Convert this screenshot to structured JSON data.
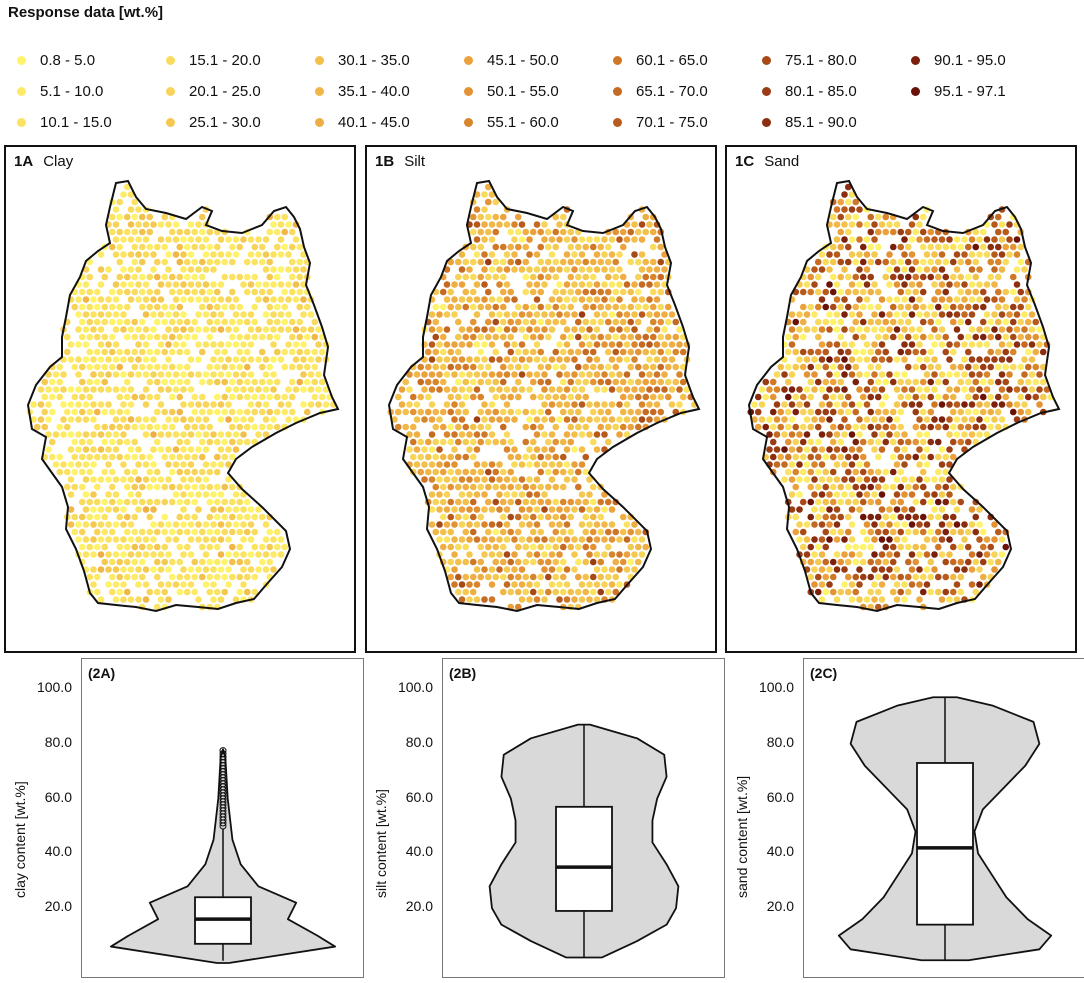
{
  "legend": {
    "title": "Response data [wt.%]",
    "items": [
      {
        "label": "0.8 - 5.0",
        "color": "#fff36b"
      },
      {
        "label": "5.1 - 10.0",
        "color": "#fdeb68"
      },
      {
        "label": "10.1 - 15.0",
        "color": "#fbe261"
      },
      {
        "label": "15.1 - 20.0",
        "color": "#f9dc5e"
      },
      {
        "label": "20.1 - 25.0",
        "color": "#f7d35a"
      },
      {
        "label": "25.1 - 30.0",
        "color": "#f4c951"
      },
      {
        "label": "30.1 - 35.0",
        "color": "#f2c04b"
      },
      {
        "label": "35.1 - 40.0",
        "color": "#f0b748"
      },
      {
        "label": "40.1 - 45.0",
        "color": "#eeae43"
      },
      {
        "label": "45.1 - 50.0",
        "color": "#eba23d"
      },
      {
        "label": "50.1 - 55.0",
        "color": "#e39234"
      },
      {
        "label": "55.1 - 60.0",
        "color": "#d8852c"
      },
      {
        "label": "60.1 - 65.0",
        "color": "#cf7727"
      },
      {
        "label": "65.1 - 70.0",
        "color": "#c56a22"
      },
      {
        "label": "70.1 - 75.0",
        "color": "#b85a1c"
      },
      {
        "label": "75.1 - 80.0",
        "color": "#a84a18"
      },
      {
        "label": "80.1 - 85.0",
        "color": "#9a3c14"
      },
      {
        "label": "85.1 - 90.0",
        "color": "#8b2e10"
      },
      {
        "label": "90.1 - 95.0",
        "color": "#7a200c"
      },
      {
        "label": "95.1 - 97.1",
        "color": "#6a1208"
      }
    ]
  },
  "maps": [
    {
      "id": "1A",
      "title": "Clay",
      "level_weights": [
        6,
        8,
        7,
        5,
        3,
        2,
        1,
        0.5,
        0.2,
        0,
        0,
        0,
        0,
        0,
        0,
        0,
        0,
        0,
        0,
        0
      ]
    },
    {
      "id": "1B",
      "title": "Silt",
      "level_weights": [
        0.5,
        0.6,
        1,
        2,
        3,
        3,
        3.5,
        3.5,
        3,
        2.5,
        2,
        2,
        2,
        1.5,
        1,
        0.5,
        0.2,
        0,
        0,
        0
      ]
    },
    {
      "id": "1C",
      "title": "Sand",
      "level_weights": [
        2,
        2,
        2,
        2,
        1.5,
        1.2,
        1,
        1,
        1,
        1,
        1,
        1,
        1,
        1.3,
        1.6,
        2,
        2.3,
        2,
        1.5,
        0.6
      ]
    }
  ],
  "chart_data": [
    {
      "type": "violin",
      "panel": "2A",
      "ylabel": "clay content [wt.%]",
      "ylim": [
        0,
        100
      ],
      "yticks": [
        "20.0",
        "40.0",
        "60.0",
        "80.0",
        "100.0"
      ],
      "min": 0.8,
      "q1": 7,
      "median": 16,
      "q3": 24,
      "max": 78,
      "whisker_high": 49
    },
    {
      "type": "violin",
      "panel": "2B",
      "ylabel": "silt content [wt.%]",
      "ylim": [
        0,
        100
      ],
      "yticks": [
        "20.0",
        "40.0",
        "60.0",
        "80.0",
        "100.0"
      ],
      "min": 2,
      "q1": 19,
      "median": 35,
      "q3": 57,
      "max": 87
    },
    {
      "type": "violin",
      "panel": "2C",
      "ylabel": "sand content [wt.%]",
      "ylim": [
        0,
        100
      ],
      "yticks": [
        "20.0",
        "40.0",
        "60.0",
        "80.0",
        "100.0"
      ],
      "min": 1,
      "q1": 14,
      "median": 42,
      "q3": 73,
      "max": 97
    }
  ]
}
